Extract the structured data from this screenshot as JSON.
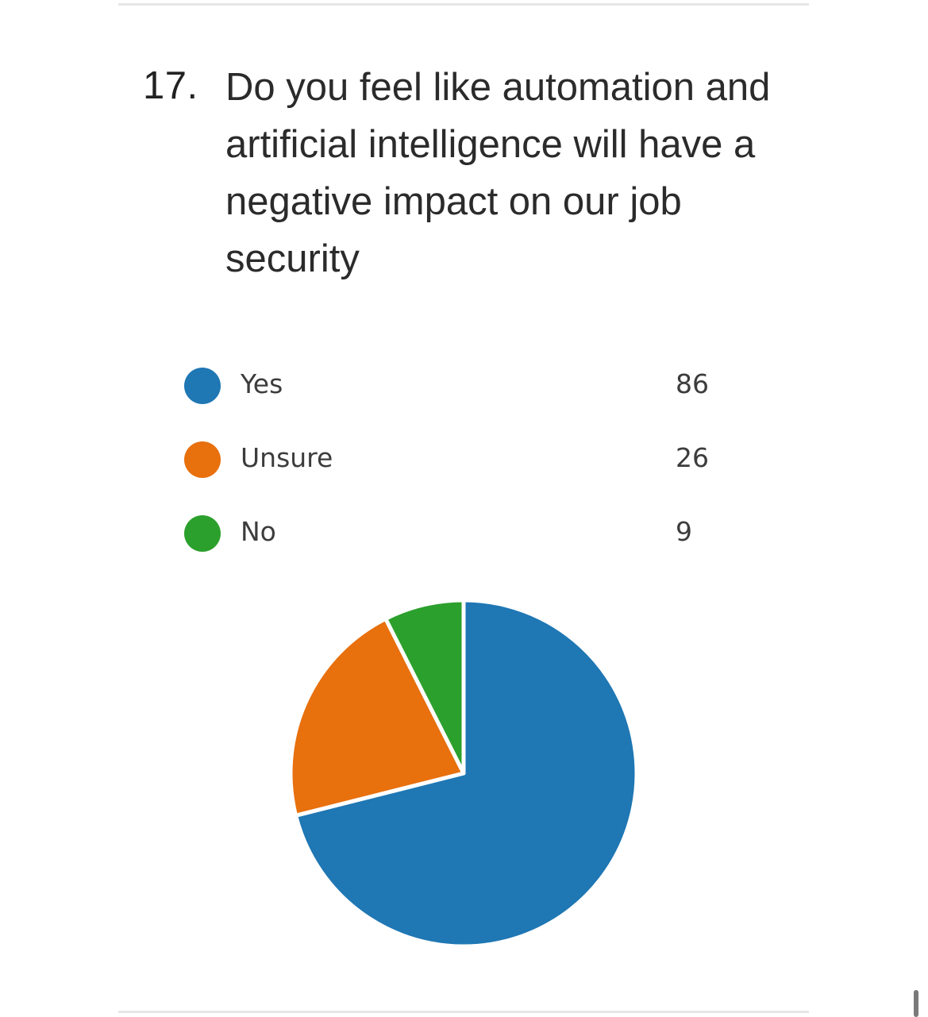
{
  "question": {
    "number": "17.",
    "text": "Do you feel like automation and artificial intelligence will have a negative impact on our job security"
  },
  "colors": {
    "yes": "#1f77b4",
    "unsure": "#e8700d",
    "no": "#2ca02c",
    "slice_border": "#ffffff"
  },
  "legend": [
    {
      "label": "Yes",
      "count": "86",
      "color": "#1f77b4"
    },
    {
      "label": "Unsure",
      "count": "26",
      "color": "#e8700d"
    },
    {
      "label": "No",
      "count": "9",
      "color": "#2ca02c"
    }
  ],
  "chart_data": {
    "type": "pie",
    "categories": [
      "Yes",
      "Unsure",
      "No"
    ],
    "values": [
      86,
      26,
      9
    ],
    "colors": [
      "#1f77b4",
      "#e8700d",
      "#2ca02c"
    ],
    "title": "Do you feel like automation and artificial intelligence will have a negative impact on our job security",
    "legend": "top"
  }
}
